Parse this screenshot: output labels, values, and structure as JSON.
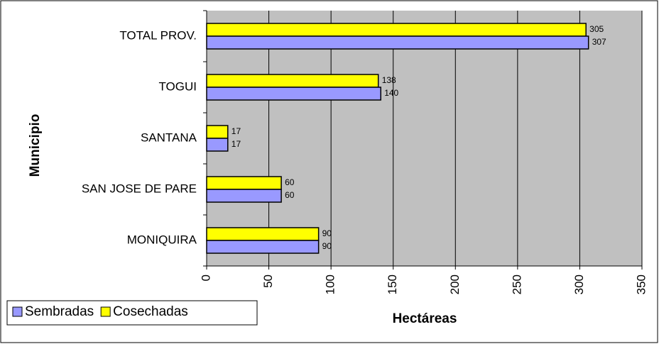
{
  "chart_data": {
    "type": "hbar",
    "categories": [
      "TOTAL PROV.",
      "TOGUI",
      "SANTANA",
      "SAN JOSE DE PARE",
      "MONIQUIRA"
    ],
    "series": [
      {
        "name": "Sembradas",
        "color": "#9999ff",
        "values": [
          307,
          140,
          17,
          60,
          90
        ]
      },
      {
        "name": "Cosechadas",
        "color": "#ffff00",
        "values": [
          305,
          138,
          17,
          60,
          90
        ]
      }
    ],
    "xlim": [
      0,
      350
    ],
    "xticks": [
      0,
      50,
      100,
      150,
      200,
      250,
      300,
      350
    ],
    "xlabel": "Hectáreas",
    "ylabel": "Municipio",
    "grid": true,
    "legend": "bottom-left"
  }
}
